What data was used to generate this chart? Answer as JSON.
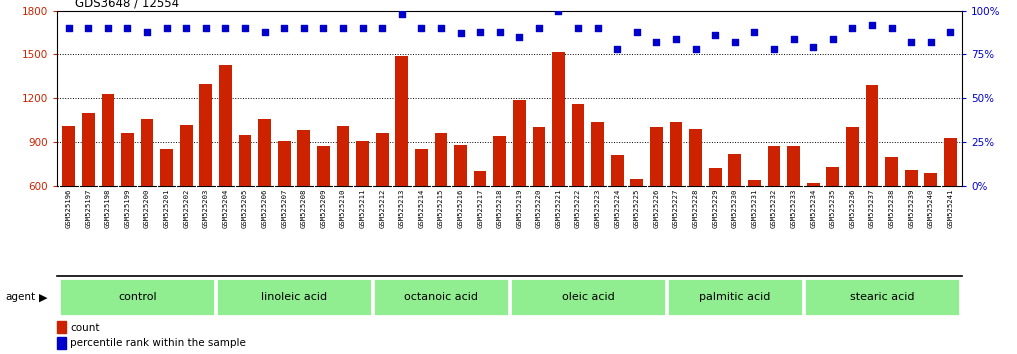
{
  "title": "GDS3648 / 12554",
  "bar_color": "#cc2200",
  "dot_color": "#0000cc",
  "ylim_left": [
    600,
    1800
  ],
  "ylim_right": [
    0,
    100
  ],
  "yticks_left": [
    600,
    900,
    1200,
    1500,
    1800
  ],
  "yticks_right": [
    0,
    25,
    50,
    75,
    100
  ],
  "samples": [
    "GSM525196",
    "GSM525197",
    "GSM525198",
    "GSM525199",
    "GSM525200",
    "GSM525201",
    "GSM525202",
    "GSM525203",
    "GSM525204",
    "GSM525205",
    "GSM525206",
    "GSM525207",
    "GSM525208",
    "GSM525209",
    "GSM525210",
    "GSM525211",
    "GSM525212",
    "GSM525213",
    "GSM525214",
    "GSM525215",
    "GSM525216",
    "GSM525217",
    "GSM525218",
    "GSM525219",
    "GSM525220",
    "GSM525221",
    "GSM525222",
    "GSM525223",
    "GSM525224",
    "GSM525225",
    "GSM525226",
    "GSM525227",
    "GSM525228",
    "GSM525229",
    "GSM525230",
    "GSM525231",
    "GSM525232",
    "GSM525233",
    "GSM525234",
    "GSM525235",
    "GSM525236",
    "GSM525237",
    "GSM525238",
    "GSM525239",
    "GSM525240",
    "GSM525241"
  ],
  "counts": [
    1010,
    1100,
    1230,
    960,
    1060,
    855,
    1020,
    1300,
    1430,
    945,
    1060,
    910,
    980,
    875,
    1010,
    905,
    960,
    1490,
    855,
    960,
    880,
    700,
    940,
    1190,
    1000,
    1520,
    1160,
    1040,
    810,
    645,
    1000,
    1040,
    990,
    720,
    820,
    640,
    870,
    870,
    620,
    730,
    1000,
    1290,
    800,
    710,
    685,
    930
  ],
  "percentile_ranks": [
    90,
    90,
    90,
    90,
    88,
    90,
    90,
    90,
    90,
    90,
    88,
    90,
    90,
    90,
    90,
    90,
    90,
    98,
    90,
    90,
    87,
    88,
    88,
    85,
    90,
    100,
    90,
    90,
    78,
    88,
    82,
    84,
    78,
    86,
    82,
    88,
    78,
    84,
    79,
    84,
    90,
    92,
    90,
    82,
    82,
    88
  ],
  "groups": [
    {
      "name": "control",
      "start": 0,
      "end": 8
    },
    {
      "name": "linoleic acid",
      "start": 8,
      "end": 16
    },
    {
      "name": "octanoic acid",
      "start": 16,
      "end": 23
    },
    {
      "name": "oleic acid",
      "start": 23,
      "end": 31
    },
    {
      "name": "palmitic acid",
      "start": 31,
      "end": 38
    },
    {
      "name": "stearic acid",
      "start": 38,
      "end": 46
    }
  ],
  "bg_color": "#e8e8e8",
  "plot_bg": "white",
  "sample_bg": "#d8d8d8",
  "group_color": "#90ee90",
  "legend_count_color": "#cc2200",
  "legend_pct_color": "#0000cc"
}
